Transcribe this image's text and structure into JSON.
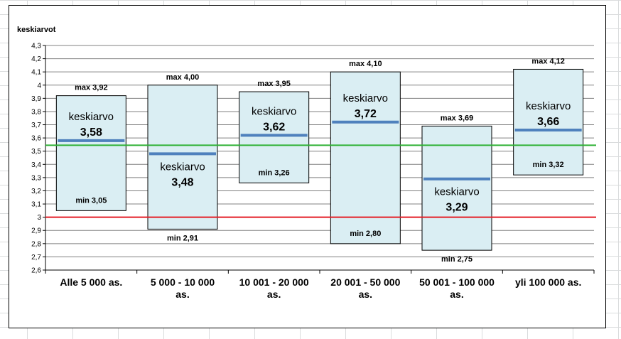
{
  "chart_data": {
    "type": "box",
    "ylabel": "keskiarvot",
    "ylim": [
      2.6,
      4.3
    ],
    "ytick_step": 0.1,
    "ytick_labels": [
      "2,6",
      "2,7",
      "2,8",
      "2,9",
      "3",
      "3,1",
      "3,2",
      "3,3",
      "3,4",
      "3,5",
      "3,6",
      "3,7",
      "3,8",
      "3,9",
      "4",
      "4,1",
      "4,2",
      "4,3"
    ],
    "grid": true,
    "categories": [
      {
        "label": [
          "Alle 5 000 as."
        ],
        "min": 3.05,
        "max": 3.92,
        "mean": 3.58,
        "min_label": "min 3,05",
        "max_label": "max 3,92",
        "mean_word": "keskiarvo",
        "mean_label": "3,58",
        "text_pos": "above"
      },
      {
        "label": [
          "5 000 - 10 000",
          "as."
        ],
        "min": 2.91,
        "max": 4.0,
        "mean": 3.48,
        "min_label": "min 2,91",
        "max_label": "max 4,00",
        "mean_word": "keskiarvo",
        "mean_label": "3,48",
        "text_pos": "below"
      },
      {
        "label": [
          "10 001 - 20 000",
          "as."
        ],
        "min": 3.26,
        "max": 3.95,
        "mean": 3.62,
        "min_label": "min 3,26",
        "max_label": "max 3,95",
        "mean_word": "keskiarvo",
        "mean_label": "3,62",
        "text_pos": "above"
      },
      {
        "label": [
          "20 001 - 50 000",
          "as."
        ],
        "min": 2.8,
        "max": 4.1,
        "mean": 3.72,
        "min_label": "min 2,80",
        "max_label": "max 4,10",
        "mean_word": "keskiarvo",
        "mean_label": "3,72",
        "text_pos": "above"
      },
      {
        "label": [
          "50 001 - 100 000",
          "as."
        ],
        "min": 2.75,
        "max": 3.69,
        "mean": 3.29,
        "min_label": "min 2,75",
        "max_label": "max 3,69",
        "mean_word": "keskiarvo",
        "mean_label": "3,29",
        "text_pos": "below"
      },
      {
        "label": [
          "yli 100 000 as."
        ],
        "min": 3.32,
        "max": 4.12,
        "mean": 3.66,
        "min_label": "min 3,32",
        "max_label": "max 4,12",
        "mean_word": "keskiarvo",
        "mean_label": "3,66",
        "text_pos": "above"
      }
    ],
    "reference_lines": [
      {
        "value": 3.545,
        "color": "#2eb135"
      },
      {
        "value": 3.0,
        "color": "#e41e26"
      }
    ],
    "colors": {
      "box_fill": "#daeef3",
      "box_stroke": "#000000",
      "mean_line": "#4f81bd",
      "grid": "#808080"
    }
  }
}
